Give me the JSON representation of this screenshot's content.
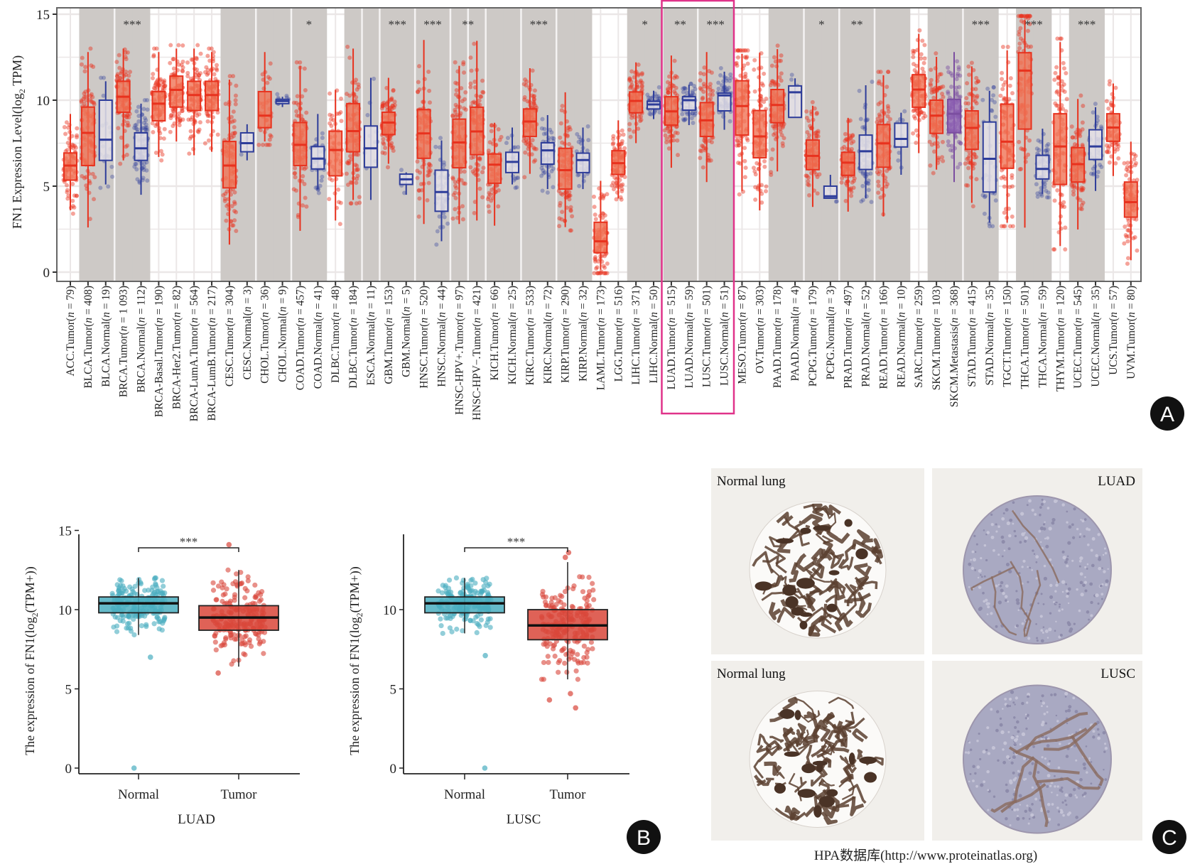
{
  "panel_a": {
    "letter": "A",
    "y_label": {
      "prefix": "FN1 Expression Level(log",
      "sub": "2",
      "suffix": " TPM)"
    },
    "y_ticks": [
      0,
      5,
      10,
      15
    ],
    "ylim": [
      0,
      15
    ],
    "colors": {
      "tumor": "#e8321e",
      "normal": "#2e3d9a",
      "metastasis": "#7b4ea0",
      "shade": "#cdc9c6",
      "highlight": "#e0338a"
    },
    "highlight": [
      "LUAD.Tumor",
      "LUSC.Normal"
    ],
    "categories": [
      {
        "label": "ACC.Tumor",
        "n": "79",
        "type": "tumor",
        "shaded": false,
        "stats": [
          3.6,
          5.35,
          6.2,
          6.93,
          9.2
        ]
      },
      {
        "label": "BLCA.Tumor",
        "n": "408",
        "type": "tumor",
        "shaded": true,
        "stats": [
          2.6,
          6.2,
          8.1,
          9.6,
          12.8
        ]
      },
      {
        "label": "BLCA.Normal",
        "n": "19",
        "type": "normal",
        "shaded": true,
        "stats": [
          5.1,
          6.5,
          7.7,
          10.0,
          11.1
        ]
      },
      {
        "label": "BRCA.Tumor",
        "n": "1 093",
        "type": "tumor",
        "shaded": true,
        "stats": [
          6.5,
          9.3,
          10.2,
          11.1,
          13.0
        ]
      },
      {
        "label": "BRCA.Normal",
        "n": "112",
        "type": "normal",
        "shaded": true,
        "stats": [
          4.5,
          6.5,
          7.2,
          8.1,
          9.8
        ]
      },
      {
        "label": "BRCA-Basal.Tumor",
        "n": "190",
        "type": "tumor",
        "shaded": false,
        "stats": [
          6.7,
          8.8,
          9.8,
          10.5,
          12.8
        ]
      },
      {
        "label": "BRCA-Her2.Tumor",
        "n": "82",
        "type": "tumor",
        "shaded": false,
        "stats": [
          7.6,
          9.6,
          10.6,
          11.4,
          13.0
        ]
      },
      {
        "label": "BRCA-LumA.Tumor",
        "n": "564",
        "type": "tumor",
        "shaded": false,
        "stats": [
          6.8,
          9.4,
          10.3,
          11.1,
          13.0
        ]
      },
      {
        "label": "BRCA-LumB.Tumor",
        "n": "217",
        "type": "tumor",
        "shaded": false,
        "stats": [
          7.0,
          9.4,
          10.3,
          11.1,
          12.8
        ]
      },
      {
        "label": "CESC.Tumor",
        "n": "304",
        "type": "tumor",
        "shaded": true,
        "stats": [
          1.6,
          4.9,
          6.2,
          7.6,
          11.2
        ]
      },
      {
        "label": "CESC.Normal",
        "n": "3",
        "type": "normal",
        "shaded": true,
        "stats": [
          6.5,
          7.0,
          7.5,
          8.1,
          8.6
        ]
      },
      {
        "label": "CHOL.Tumor",
        "n": "36",
        "type": "tumor",
        "shaded": true,
        "stats": [
          7.6,
          8.4,
          9.1,
          10.5,
          12.8
        ]
      },
      {
        "label": "CHOL.Normal",
        "n": "9",
        "type": "normal",
        "shaded": true,
        "stats": [
          9.6,
          9.8,
          9.95,
          10.05,
          10.2
        ]
      },
      {
        "label": "COAD.Tumor",
        "n": "457",
        "type": "tumor",
        "shaded": true,
        "stats": [
          2.4,
          6.2,
          7.4,
          8.7,
          12.0
        ]
      },
      {
        "label": "COAD.Normal",
        "n": "41",
        "type": "normal",
        "shaded": true,
        "stats": [
          4.8,
          6.0,
          6.6,
          7.3,
          9.2
        ]
      },
      {
        "label": "DLBC.Tumor",
        "n": "48",
        "type": "tumor",
        "shaded": false,
        "stats": [
          3.0,
          5.6,
          7.1,
          8.2,
          10.6
        ]
      },
      {
        "label": "DLBC.Tumor",
        "n": "184",
        "type": "tumor",
        "shaded": true,
        "stats": [
          4.2,
          7.0,
          8.2,
          9.8,
          13.0
        ]
      },
      {
        "label": "ESCA.Normal",
        "n": "11",
        "type": "normal",
        "shaded": true,
        "stats": [
          4.2,
          6.1,
          7.2,
          8.5,
          11.3
        ]
      },
      {
        "label": "GBM.Tumor",
        "n": "153",
        "type": "tumor",
        "shaded": true,
        "stats": [
          6.3,
          8.0,
          8.7,
          9.3,
          11.3
        ]
      },
      {
        "label": "GBM.Normal",
        "n": "5",
        "type": "normal",
        "shaded": true,
        "stats": [
          4.5,
          5.1,
          5.4,
          5.7,
          5.8
        ]
      },
      {
        "label": "HNSC.Tumor",
        "n": "520",
        "type": "tumor",
        "shaded": true,
        "stats": [
          2.8,
          6.62,
          8.07,
          9.45,
          13.5
        ]
      },
      {
        "label": "HNSC.Normal",
        "n": "44",
        "type": "normal",
        "shaded": true,
        "stats": [
          1.8,
          3.54,
          4.66,
          5.93,
          7.66
        ]
      },
      {
        "label": "HNSC-HPV+.Tumor",
        "n": "97",
        "type": "tumor",
        "shaded": true,
        "stats": [
          2.8,
          6.07,
          7.54,
          8.9,
          12.0
        ]
      },
      {
        "label": "HNSC-HPV−.Tumor",
        "n": "421",
        "type": "tumor",
        "shaded": true,
        "stats": [
          3.0,
          6.83,
          8.18,
          9.59,
          13.45
        ]
      },
      {
        "label": "KICH.Tumor",
        "n": "66",
        "type": "tumor",
        "shaded": true,
        "stats": [
          2.7,
          5.17,
          6.25,
          6.87,
          8.69
        ]
      },
      {
        "label": "KICH.Normal",
        "n": "25",
        "type": "normal",
        "shaded": true,
        "stats": [
          5.1,
          5.79,
          6.41,
          6.97,
          8.41
        ]
      },
      {
        "label": "KIRC.Tumor",
        "n": "533",
        "type": "tumor",
        "shaded": true,
        "stats": [
          5.72,
          7.89,
          8.76,
          9.49,
          11.86
        ]
      },
      {
        "label": "KIRC.Normal",
        "n": "72",
        "type": "normal",
        "shaded": true,
        "stats": [
          4.83,
          6.28,
          7.08,
          7.52,
          9.13
        ]
      },
      {
        "label": "KIRP.Tumor",
        "n": "290",
        "type": "tumor",
        "shaded": true,
        "stats": [
          2.62,
          4.83,
          5.93,
          7.2,
          10.46
        ]
      },
      {
        "label": "KIRP.Normal",
        "n": "32",
        "type": "normal",
        "shaded": true,
        "stats": [
          4.83,
          5.79,
          6.52,
          6.92,
          8.41
        ]
      },
      {
        "label": "LAML.Tumor",
        "n": "173",
        "type": "tumor",
        "shaded": false,
        "stats": [
          0.14,
          1.13,
          1.79,
          2.9,
          5.31
        ]
      },
      {
        "label": "LGG.Tumor",
        "n": "516",
        "type": "tumor",
        "shaded": false,
        "stats": [
          4.28,
          5.68,
          6.34,
          7.06,
          8.83
        ]
      },
      {
        "label": "LIHC.Tumor",
        "n": "371",
        "type": "tumor",
        "shaded": true,
        "stats": [
          7.5,
          9.27,
          9.96,
          10.48,
          12.2
        ]
      },
      {
        "label": "LIHC.Normal",
        "n": "50",
        "type": "normal",
        "shaded": true,
        "stats": [
          8.9,
          9.49,
          9.75,
          9.93,
          10.55
        ]
      },
      {
        "label": "LUAD.Tumor",
        "n": "515",
        "type": "tumor",
        "shaded": true,
        "stats": [
          6.07,
          8.55,
          9.35,
          10.2,
          12.6
        ]
      },
      {
        "label": "LUAD.Normal",
        "n": "59",
        "type": "normal",
        "shaded": true,
        "stats": [
          8.55,
          9.42,
          10.0,
          10.2,
          10.9
        ]
      },
      {
        "label": "LUSC.Tumor",
        "n": "501",
        "type": "tumor",
        "shaded": true,
        "stats": [
          5.24,
          7.89,
          8.83,
          9.86,
          12.8
        ]
      },
      {
        "label": "LUSC.Normal",
        "n": "51",
        "type": "normal",
        "shaded": true,
        "stats": [
          8.28,
          9.38,
          10.28,
          10.41,
          11.66
        ]
      },
      {
        "label": "MESO.Tumor",
        "n": "87",
        "type": "tumor",
        "shaded": false,
        "stats": [
          4.72,
          7.97,
          9.66,
          11.13,
          12.69
        ]
      },
      {
        "label": "OV.Tumor",
        "n": "303",
        "type": "tumor",
        "shaded": false,
        "stats": [
          3.59,
          6.65,
          7.89,
          9.4,
          12.76
        ]
      },
      {
        "label": "PAAD.Tumor",
        "n": "178",
        "type": "tumor",
        "shaded": true,
        "stats": [
          5.86,
          8.69,
          9.72,
          10.62,
          12.97
        ]
      },
      {
        "label": "PAAD.Normal",
        "n": "4",
        "type": "normal",
        "shaded": true,
        "stats": [
          9.0,
          9.0,
          10.46,
          10.83,
          11.27
        ]
      },
      {
        "label": "PCPG.Tumor",
        "n": "179",
        "type": "tumor",
        "shaded": true,
        "stats": [
          3.79,
          5.96,
          6.76,
          7.68,
          9.68
        ]
      },
      {
        "label": "PCPG.Normal",
        "n": "3",
        "type": "normal",
        "shaded": true,
        "stats": [
          4.3,
          4.3,
          4.41,
          5.0,
          5.66
        ]
      },
      {
        "label": "PRAD.Tumor",
        "n": "497",
        "type": "tumor",
        "shaded": true,
        "stats": [
          3.52,
          5.63,
          6.37,
          6.97,
          8.97
        ]
      },
      {
        "label": "PRAD.Normal",
        "n": "52",
        "type": "normal",
        "shaded": true,
        "stats": [
          4.28,
          5.97,
          7.03,
          7.97,
          10.87
        ]
      },
      {
        "label": "READ.Tumor",
        "n": "166",
        "type": "tumor",
        "shaded": true,
        "stats": [
          3.24,
          6.1,
          7.49,
          8.58,
          11.45
        ]
      },
      {
        "label": "READ.Normal",
        "n": "10",
        "type": "normal",
        "shaded": true,
        "stats": [
          5.66,
          7.28,
          7.75,
          8.66,
          9.27
        ]
      },
      {
        "label": "SARC.Tumor",
        "n": "259",
        "type": "tumor",
        "shaded": false,
        "stats": [
          6.92,
          9.59,
          10.62,
          11.48,
          13.86
        ]
      },
      {
        "label": "SKCM.Tumor",
        "n": "103",
        "type": "tumor",
        "shaded": true,
        "stats": [
          5.96,
          8.07,
          9.1,
          10.0,
          12.52
        ]
      },
      {
        "label": "SKCM.Metastasis",
        "n": "368",
        "type": "metastasis",
        "shaded": true,
        "stats": [
          5.24,
          8.11,
          9.21,
          10.04,
          12.8
        ]
      },
      {
        "label": "STAD.Tumor",
        "n": "415",
        "type": "tumor",
        "shaded": true,
        "stats": [
          4.03,
          7.14,
          8.39,
          9.38,
          11.97
        ]
      },
      {
        "label": "STAD.Normal",
        "n": "35",
        "type": "normal",
        "shaded": true,
        "stats": [
          2.87,
          4.66,
          6.59,
          8.73,
          10.55
        ]
      },
      {
        "label": "TGCT.Tumor",
        "n": "150",
        "type": "tumor",
        "shaded": false,
        "stats": [
          2.87,
          6.04,
          7.59,
          9.77,
          12.9
        ]
      },
      {
        "label": "THCA.Tumor",
        "n": "501",
        "type": "tumor",
        "shaded": true,
        "stats": [
          2.59,
          8.32,
          11.72,
          12.76,
          14.69
        ]
      },
      {
        "label": "THCA.Normal",
        "n": "59",
        "type": "normal",
        "shaded": true,
        "stats": [
          4.55,
          5.42,
          6.0,
          6.79,
          8.34
        ]
      },
      {
        "label": "THYM.Tumor",
        "n": "120",
        "type": "tumor",
        "shaded": false,
        "stats": [
          1.52,
          5.1,
          7.31,
          9.21,
          13.38
        ]
      },
      {
        "label": "UCEC.Tumor",
        "n": "545",
        "type": "tumor",
        "shaded": true,
        "stats": [
          2.48,
          5.24,
          6.28,
          7.24,
          10.07
        ]
      },
      {
        "label": "UCEC.Normal",
        "n": "35",
        "type": "normal",
        "shaded": true,
        "stats": [
          4.72,
          6.55,
          7.31,
          8.28,
          9.59
        ]
      },
      {
        "label": "UCS.Tumor",
        "n": "57",
        "type": "tumor",
        "shaded": false,
        "stats": [
          5.59,
          7.61,
          8.41,
          9.21,
          10.97
        ]
      },
      {
        "label": "UVM.Tumor",
        "n": "80",
        "type": "tumor",
        "shaded": false,
        "stats": [
          0.69,
          3.2,
          4.07,
          5.24,
          7.59
        ]
      }
    ],
    "significance": [
      {
        "between": [
          "BRCA.Tumor",
          "BRCA.Normal"
        ],
        "label": "***"
      },
      {
        "between": [
          "COAD.Tumor",
          "COAD.Normal"
        ],
        "label": "*"
      },
      {
        "between": [
          "GBM.Tumor",
          "GBM.Normal"
        ],
        "label": "***"
      },
      {
        "between": [
          "HNSC.Tumor",
          "HNSC.Normal"
        ],
        "label": "***"
      },
      {
        "between": [
          "HNSC-HPV+.Tumor",
          "HNSC-HPV−.Tumor"
        ],
        "label": "**"
      },
      {
        "between": [
          "KIRC.Tumor",
          "KIRC.Normal"
        ],
        "label": "***"
      },
      {
        "between": [
          "LIHC.Tumor",
          "LIHC.Normal"
        ],
        "label": "*"
      },
      {
        "between": [
          "LUAD.Tumor",
          "LUAD.Normal"
        ],
        "label": "**"
      },
      {
        "between": [
          "LUSC.Tumor",
          "LUSC.Normal"
        ],
        "label": "***"
      },
      {
        "between": [
          "PCPG.Tumor",
          "PCPG.Normal"
        ],
        "label": "*"
      },
      {
        "between": [
          "PRAD.Tumor",
          "PRAD.Normal"
        ],
        "label": "**"
      },
      {
        "between": [
          "STAD.Tumor",
          "STAD.Normal"
        ],
        "label": "***"
      },
      {
        "between": [
          "THCA.Tumor",
          "THCA.Normal"
        ],
        "label": "***"
      },
      {
        "between": [
          "UCEC.Tumor",
          "UCEC.Normal"
        ],
        "label": "***"
      }
    ]
  },
  "panel_b": {
    "letter": "B",
    "y_label": {
      "prefix": "The expression of FN1(log",
      "sub": "2",
      "suffix": "(TPM+))"
    },
    "colors": {
      "normal": "#4aaec0",
      "tumor": "#d9463a"
    },
    "charts": [
      {
        "xlabel": "LUAD",
        "y_ticks": [
          0,
          5,
          10,
          15
        ],
        "ylim": [
          0,
          15
        ],
        "significance": "***",
        "groups": [
          {
            "label": "Normal",
            "type": "normal",
            "stats": [
              8.4,
              9.8,
              10.4,
              10.8,
              12.0
            ],
            "outliers": [
              0,
              7.0
            ]
          },
          {
            "label": "Tumor",
            "type": "tumor",
            "stats": [
              6.4,
              8.7,
              9.5,
              10.25,
              12.5
            ],
            "outliers": [
              6.0,
              14.1
            ]
          }
        ]
      },
      {
        "xlabel": "LUSC",
        "y_ticks": [
          0,
          5,
          10
        ],
        "ylim": [
          0,
          15
        ],
        "significance": "***",
        "groups": [
          {
            "label": "Normal",
            "type": "normal",
            "stats": [
              8.5,
              9.8,
              10.4,
              10.8,
              12.0
            ],
            "outliers": [
              0,
              7.1
            ]
          },
          {
            "label": "Tumor",
            "type": "tumor",
            "stats": [
              5.6,
              8.1,
              9.0,
              10.0,
              13.0
            ],
            "outliers": [
              4.7,
              4.3,
              3.8,
              13.6,
              13.3
            ]
          }
        ]
      }
    ]
  },
  "panel_c": {
    "letter": "C",
    "images": [
      {
        "label": "Normal lung",
        "kind": "normal"
      },
      {
        "label": "LUAD",
        "kind": "tumor"
      },
      {
        "label": "Normal lung",
        "kind": "normal"
      },
      {
        "label": "LUSC",
        "kind": "tumor"
      }
    ],
    "caption": "HPA数据库(http://www.proteinatlas.org)"
  }
}
